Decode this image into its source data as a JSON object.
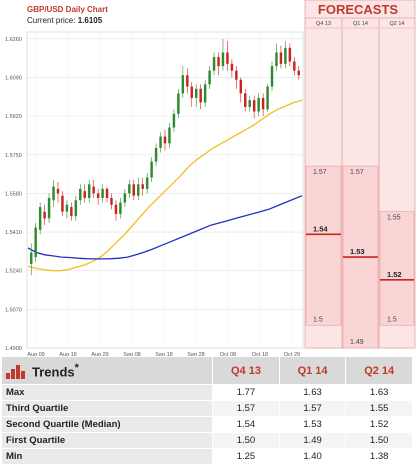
{
  "header": {
    "title": "GBP/USD Daily Chart",
    "price_label": "Current price:",
    "price_value": "1.6105"
  },
  "forecasts_title": "FORECASTS",
  "chart_data": {
    "type": "candlestick",
    "y_ticks": [
      "1.6260",
      "1.6090",
      "1.5920",
      "1.5750",
      "1.5580",
      "1.5410",
      "1.5240",
      "1.5070",
      "1.4900"
    ],
    "x_ticks": [
      "Aug 09",
      "Aug 19",
      "Aug 29",
      "Sep 08",
      "Sep 18",
      "Sep 28",
      "Oct 08",
      "Oct 18",
      "Oct 29"
    ],
    "ylim": [
      1.49,
      1.629
    ],
    "colors": {
      "up": "#2e8b2e",
      "down": "#cc2222",
      "ma_short": "#f0c020",
      "ma_long": "#2233bb"
    },
    "candles": [
      [
        1.527,
        1.532,
        1.522,
        1.536
      ],
      [
        1.53,
        1.543,
        1.528,
        1.545
      ],
      [
        1.542,
        1.552,
        1.54,
        1.554
      ],
      [
        1.55,
        1.547,
        1.544,
        1.553
      ],
      [
        1.547,
        1.556,
        1.545,
        1.558
      ],
      [
        1.555,
        1.561,
        1.552,
        1.564
      ],
      [
        1.56,
        1.558,
        1.554,
        1.563
      ],
      [
        1.557,
        1.55,
        1.548,
        1.559
      ],
      [
        1.55,
        1.553,
        1.547,
        1.555
      ],
      [
        1.552,
        1.548,
        1.546,
        1.554
      ],
      [
        1.548,
        1.555,
        1.546,
        1.557
      ],
      [
        1.555,
        1.56,
        1.553,
        1.562
      ],
      [
        1.559,
        1.556,
        1.554,
        1.562
      ],
      [
        1.556,
        1.562,
        1.554,
        1.564
      ],
      [
        1.561,
        1.558,
        1.556,
        1.564
      ],
      [
        1.558,
        1.556,
        1.553,
        1.56
      ],
      [
        1.556,
        1.56,
        1.554,
        1.562
      ],
      [
        1.56,
        1.556,
        1.554,
        1.561
      ],
      [
        1.556,
        1.553,
        1.551,
        1.558
      ],
      [
        1.553,
        1.549,
        1.546,
        1.555
      ],
      [
        1.549,
        1.554,
        1.547,
        1.556
      ],
      [
        1.554,
        1.558,
        1.552,
        1.56
      ],
      [
        1.558,
        1.562,
        1.556,
        1.564
      ],
      [
        1.562,
        1.557,
        1.555,
        1.564
      ],
      [
        1.557,
        1.562,
        1.555,
        1.565
      ],
      [
        1.562,
        1.56,
        1.557,
        1.565
      ],
      [
        1.56,
        1.565,
        1.558,
        1.567
      ],
      [
        1.565,
        1.572,
        1.563,
        1.574
      ],
      [
        1.572,
        1.578,
        1.57,
        1.58
      ],
      [
        1.578,
        1.583,
        1.576,
        1.585
      ],
      [
        1.583,
        1.58,
        1.577,
        1.586
      ],
      [
        1.58,
        1.587,
        1.578,
        1.589
      ],
      [
        1.587,
        1.593,
        1.585,
        1.595
      ],
      [
        1.593,
        1.602,
        1.591,
        1.604
      ],
      [
        1.602,
        1.61,
        1.6,
        1.614
      ],
      [
        1.61,
        1.605,
        1.602,
        1.613
      ],
      [
        1.605,
        1.6,
        1.596,
        1.607
      ],
      [
        1.6,
        1.604,
        1.596,
        1.606
      ],
      [
        1.604,
        1.598,
        1.595,
        1.606
      ],
      [
        1.598,
        1.606,
        1.596,
        1.608
      ],
      [
        1.606,
        1.612,
        1.604,
        1.614
      ],
      [
        1.612,
        1.618,
        1.61,
        1.62
      ],
      [
        1.618,
        1.614,
        1.61,
        1.62
      ],
      [
        1.614,
        1.62,
        1.612,
        1.626
      ],
      [
        1.62,
        1.615,
        1.612,
        1.625
      ],
      [
        1.615,
        1.612,
        1.609,
        1.617
      ],
      [
        1.612,
        1.608,
        1.604,
        1.614
      ],
      [
        1.608,
        1.602,
        1.598,
        1.609
      ],
      [
        1.602,
        1.596,
        1.594,
        1.604
      ],
      [
        1.596,
        1.599,
        1.594,
        1.601
      ],
      [
        1.599,
        1.594,
        1.591,
        1.601
      ],
      [
        1.594,
        1.6,
        1.592,
        1.602
      ],
      [
        1.6,
        1.595,
        1.592,
        1.602
      ],
      [
        1.595,
        1.605,
        1.594,
        1.606
      ],
      [
        1.605,
        1.614,
        1.603,
        1.616
      ],
      [
        1.614,
        1.62,
        1.612,
        1.624
      ],
      [
        1.62,
        1.615,
        1.613,
        1.623
      ],
      [
        1.615,
        1.622,
        1.613,
        1.625
      ],
      [
        1.622,
        1.616,
        1.614,
        1.624
      ],
      [
        1.616,
        1.612,
        1.61,
        1.618
      ],
      [
        1.612,
        1.61,
        1.608,
        1.614
      ]
    ],
    "ma_short": [
      1.526,
      1.525,
      1.5245,
      1.524,
      1.524,
      1.5245,
      1.5255,
      1.5265,
      1.528,
      1.53,
      1.533,
      1.5365,
      1.54,
      1.544,
      1.548,
      1.552,
      1.5555,
      1.559,
      1.5625,
      1.566,
      1.57,
      1.573,
      1.5755,
      1.578,
      1.58,
      1.582,
      1.584,
      1.586,
      1.588,
      1.5905,
      1.593,
      1.595,
      1.5965,
      1.598,
      1.599
    ],
    "ma_long": [
      1.534,
      1.532,
      1.531,
      1.5305,
      1.53,
      1.5298,
      1.5295,
      1.5293,
      1.5292,
      1.5292,
      1.5293,
      1.5295,
      1.53,
      1.531,
      1.5322,
      1.5335,
      1.535,
      1.5365,
      1.538,
      1.5395,
      1.541,
      1.5425,
      1.544,
      1.545,
      1.546,
      1.547,
      1.548,
      1.549,
      1.55,
      1.551,
      1.5525,
      1.554,
      1.5555,
      1.557
    ],
    "forecasts": [
      {
        "label": "Q4 13",
        "max": 1.77,
        "q3": 1.57,
        "median": 1.54,
        "q1": 1.5,
        "min": 1.25,
        "shown_q3": "1.57",
        "shown_median": "1.54",
        "shown_q1": "1.5"
      },
      {
        "label": "Q1 14",
        "max": 1.63,
        "q3": 1.57,
        "median": 1.53,
        "q1": 1.49,
        "min": 1.4,
        "shown_q3": "1.57",
        "shown_median": "1.53",
        "shown_q1": "1.49"
      },
      {
        "label": "Q2 14",
        "max": 1.63,
        "q3": 1.55,
        "median": 1.52,
        "q1": 1.5,
        "min": 1.38,
        "shown_q3": "1.55",
        "shown_median": "1.52",
        "shown_q1": "1.5"
      }
    ]
  },
  "table": {
    "trends_label": "Trends",
    "trends_mark": "*",
    "columns": [
      "Q4 13",
      "Q1 14",
      "Q2 14"
    ],
    "rows": [
      {
        "label": "Max",
        "values": [
          "1.77",
          "1.63",
          "1.63"
        ]
      },
      {
        "label": "Third Quartile",
        "values": [
          "1.57",
          "1.57",
          "1.55"
        ]
      },
      {
        "label": "Second Quartile (Median)",
        "values": [
          "1.54",
          "1.53",
          "1.52"
        ]
      },
      {
        "label": "First Quartile",
        "values": [
          "1.50",
          "1.49",
          "1.50"
        ]
      },
      {
        "label": "Min",
        "values": [
          "1.25",
          "1.40",
          "1.38"
        ]
      }
    ]
  }
}
